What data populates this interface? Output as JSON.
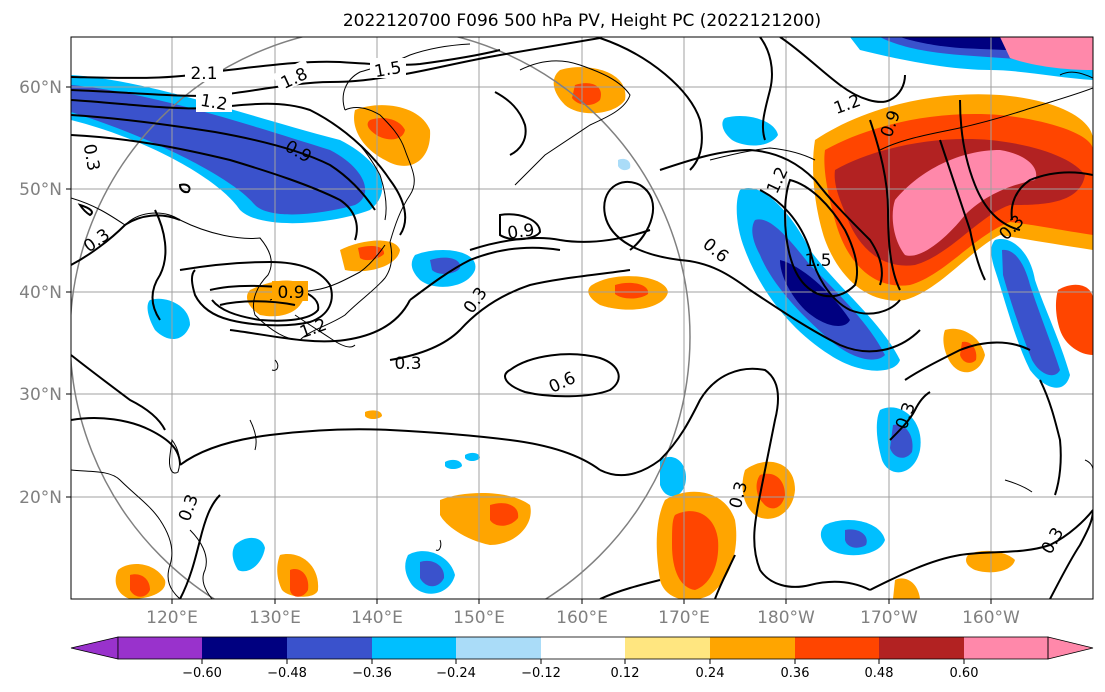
{
  "title": "2022120700 F096 500 hPa PV, Height PC (2022121200)",
  "lat_labels": [
    "60°N",
    "50°N",
    "40°N",
    "30°N",
    "20°N"
  ],
  "lon_labels": [
    "120°E",
    "130°E",
    "140°E",
    "150°E",
    "160°E",
    "170°E",
    "180°W",
    "170°W",
    "160°W"
  ],
  "colorbar": {
    "labels": [
      "−0.60",
      "−0.48",
      "−0.36",
      "−0.24",
      "−0.12",
      "0.12",
      "0.24",
      "0.36",
      "0.48",
      "0.60"
    ],
    "colors": {
      "below": "#9932cc",
      "neg060": "#000080",
      "neg048": "#3a52cc",
      "neg036": "#00bfff",
      "neg024": "#aadcf8",
      "neutral": "#ffffff",
      "pos012": "#ffe680",
      "pos024": "#ffa500",
      "pos036": "#ff4500",
      "pos048": "#b22222",
      "above": "#ff88aa"
    }
  },
  "contour_labels": {
    "c1": "2.1",
    "c2": "1.8",
    "c3": "1.5",
    "c4": "1.2",
    "c5": "0.9",
    "c6": "0.3",
    "c7": "0.3",
    "c8": "0.9",
    "c9": "0.9",
    "c10": "1.2",
    "c11": "0.3",
    "c12": "0.3",
    "c13": "0.6",
    "c14": "0.6",
    "c15": "1.2",
    "c16": "1.2",
    "c17": "1.5",
    "c18": "0.9",
    "c19": "0.3",
    "c20": "0.3",
    "c21": "0.3",
    "c22": "0.3",
    "c23": "0.3",
    "c24": "0.3"
  }
}
